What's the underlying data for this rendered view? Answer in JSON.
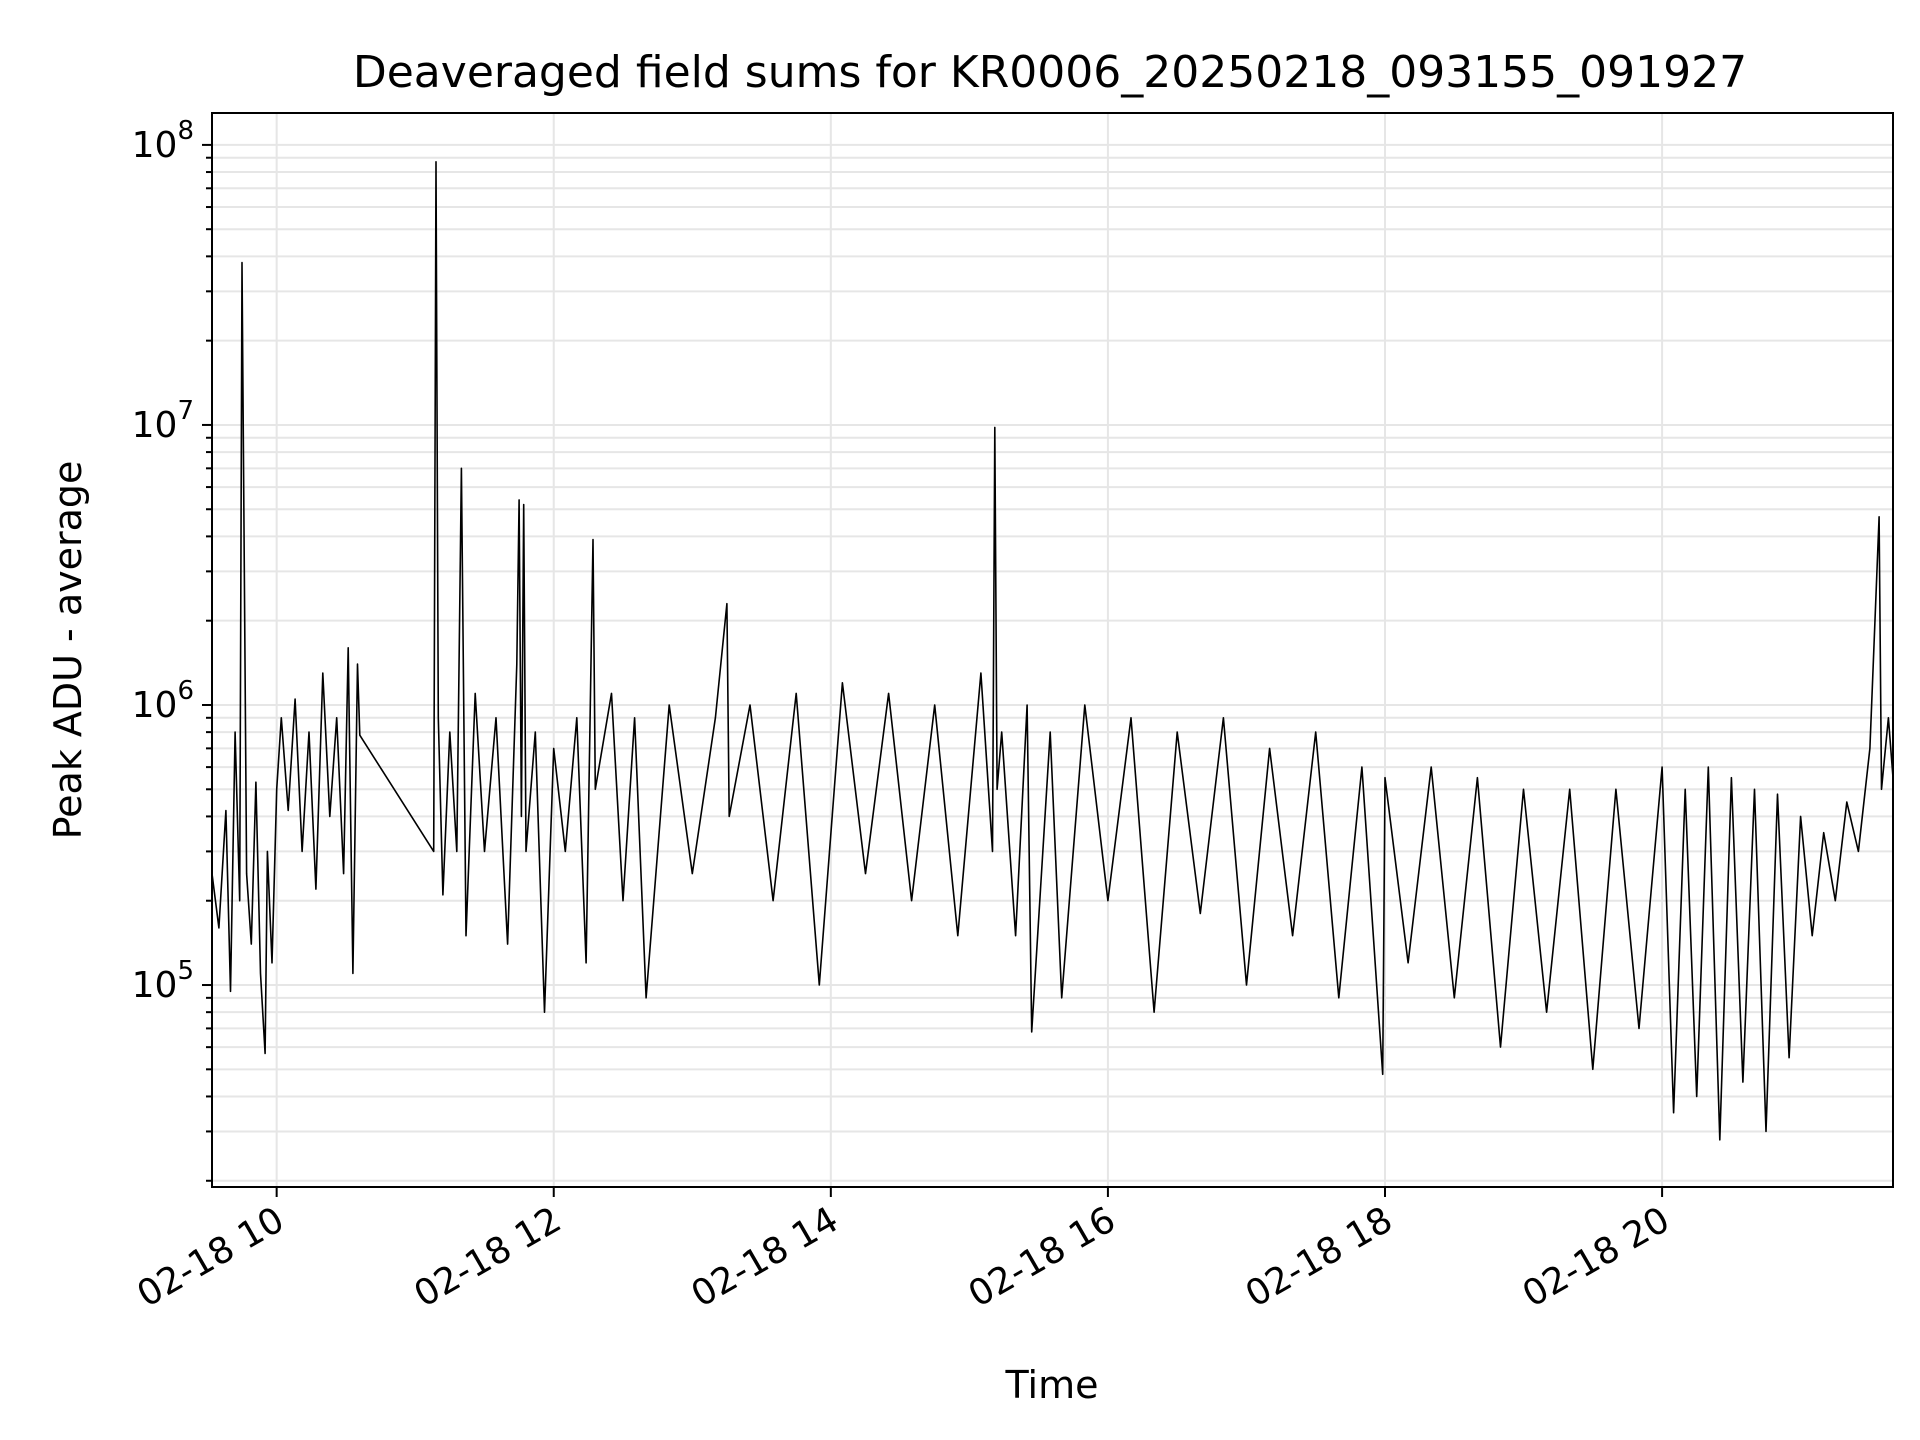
{
  "chart_data": {
    "type": "line",
    "title": "Deaveraged field sums for KR0006_20250218_093155_091927",
    "xlabel": "Time",
    "ylabel": "Peak ADU - average",
    "yscale": "log",
    "grid": true,
    "line_color": "#000000",
    "grid_color": "#e6e6e6",
    "x_range": [
      "02-18 09:32",
      "02-18 21:40"
    ],
    "ylim": [
      19000,
      130000000
    ],
    "x_ticks": [
      "02-18 10",
      "02-18 12",
      "02-18 14",
      "02-18 16",
      "02-18 18",
      "02-18 20"
    ],
    "y_ticks": [
      {
        "base": "10",
        "exp": "5",
        "value": 100000
      },
      {
        "base": "10",
        "exp": "6",
        "value": 1000000
      },
      {
        "base": "10",
        "exp": "7",
        "value": 10000000
      },
      {
        "base": "10",
        "exp": "8",
        "value": 100000000
      }
    ],
    "series": [
      {
        "data": [
          [
            "02-18 09:32",
            250000
          ],
          [
            "02-18 09:35",
            160000
          ],
          [
            "02-18 09:38",
            420000
          ],
          [
            "02-18 09:40",
            95000
          ],
          [
            "02-18 09:42",
            800000
          ],
          [
            "02-18 09:44",
            200000
          ],
          [
            "02-18 09:45",
            38000000
          ],
          [
            "02-18 09:46",
            3100000
          ],
          [
            "02-18 09:47",
            250000
          ],
          [
            "02-18 09:49",
            140000
          ],
          [
            "02-18 09:51",
            530000
          ],
          [
            "02-18 09:53",
            110000
          ],
          [
            "02-18 09:55",
            57000
          ],
          [
            "02-18 09:56",
            300000
          ],
          [
            "02-18 09:58",
            120000
          ],
          [
            "02-18 10:00",
            500000
          ],
          [
            "02-18 10:02",
            900000
          ],
          [
            "02-18 10:05",
            420000
          ],
          [
            "02-18 10:08",
            1050000
          ],
          [
            "02-18 10:11",
            300000
          ],
          [
            "02-18 10:14",
            800000
          ],
          [
            "02-18 10:17",
            220000
          ],
          [
            "02-18 10:20",
            1300000
          ],
          [
            "02-18 10:23",
            400000
          ],
          [
            "02-18 10:26",
            900000
          ],
          [
            "02-18 10:29",
            250000
          ],
          [
            "02-18 10:31",
            1600000
          ],
          [
            "02-18 10:33",
            110000
          ],
          [
            "02-18 10:35",
            1400000
          ],
          [
            "02-18 10:36",
            780000
          ],
          [
            "02-18 11:08",
            300000
          ],
          [
            "02-18 11:09",
            87000000
          ],
          [
            "02-18 11:10",
            900000
          ],
          [
            "02-18 11:12",
            210000
          ],
          [
            "02-18 11:15",
            800000
          ],
          [
            "02-18 11:18",
            300000
          ],
          [
            "02-18 11:20",
            7000000
          ],
          [
            "02-18 11:22",
            150000
          ],
          [
            "02-18 11:26",
            1100000
          ],
          [
            "02-18 11:30",
            300000
          ],
          [
            "02-18 11:35",
            900000
          ],
          [
            "02-18 11:40",
            140000
          ],
          [
            "02-18 11:44",
            1400000
          ],
          [
            "02-18 11:45",
            5400000
          ],
          [
            "02-18 11:46",
            400000
          ],
          [
            "02-18 11:47",
            5200000
          ],
          [
            "02-18 11:48",
            300000
          ],
          [
            "02-18 11:52",
            800000
          ],
          [
            "02-18 11:56",
            80000
          ],
          [
            "02-18 12:00",
            700000
          ],
          [
            "02-18 12:05",
            300000
          ],
          [
            "02-18 12:10",
            900000
          ],
          [
            "02-18 12:14",
            120000
          ],
          [
            "02-18 12:17",
            3900000
          ],
          [
            "02-18 12:18",
            500000
          ],
          [
            "02-18 12:25",
            1100000
          ],
          [
            "02-18 12:30",
            200000
          ],
          [
            "02-18 12:35",
            900000
          ],
          [
            "02-18 12:40",
            90000
          ],
          [
            "02-18 12:50",
            1000000
          ],
          [
            "02-18 13:00",
            250000
          ],
          [
            "02-18 13:10",
            900000
          ],
          [
            "02-18 13:15",
            2300000
          ],
          [
            "02-18 13:16",
            400000
          ],
          [
            "02-18 13:25",
            1000000
          ],
          [
            "02-18 13:35",
            200000
          ],
          [
            "02-18 13:45",
            1100000
          ],
          [
            "02-18 13:55",
            100000
          ],
          [
            "02-18 14:05",
            1200000
          ],
          [
            "02-18 14:15",
            250000
          ],
          [
            "02-18 14:25",
            1100000
          ],
          [
            "02-18 14:35",
            200000
          ],
          [
            "02-18 14:45",
            1000000
          ],
          [
            "02-18 14:55",
            150000
          ],
          [
            "02-18 15:05",
            1300000
          ],
          [
            "02-18 15:10",
            300000
          ],
          [
            "02-18 15:11",
            9800000
          ],
          [
            "02-18 15:12",
            500000
          ],
          [
            "02-18 15:14",
            800000
          ],
          [
            "02-18 15:20",
            150000
          ],
          [
            "02-18 15:25",
            1000000
          ],
          [
            "02-18 15:27",
            68000
          ],
          [
            "02-18 15:35",
            800000
          ],
          [
            "02-18 15:40",
            90000
          ],
          [
            "02-18 15:50",
            1000000
          ],
          [
            "02-18 16:00",
            200000
          ],
          [
            "02-18 16:10",
            900000
          ],
          [
            "02-18 16:20",
            80000
          ],
          [
            "02-18 16:30",
            800000
          ],
          [
            "02-18 16:40",
            180000
          ],
          [
            "02-18 16:50",
            900000
          ],
          [
            "02-18 17:00",
            100000
          ],
          [
            "02-18 17:10",
            700000
          ],
          [
            "02-18 17:20",
            150000
          ],
          [
            "02-18 17:30",
            800000
          ],
          [
            "02-18 17:40",
            90000
          ],
          [
            "02-18 17:50",
            600000
          ],
          [
            "02-18 17:59",
            48000
          ],
          [
            "02-18 18:00",
            550000
          ],
          [
            "02-18 18:10",
            120000
          ],
          [
            "02-18 18:20",
            600000
          ],
          [
            "02-18 18:30",
            90000
          ],
          [
            "02-18 18:40",
            550000
          ],
          [
            "02-18 18:50",
            60000
          ],
          [
            "02-18 19:00",
            500000
          ],
          [
            "02-18 19:10",
            80000
          ],
          [
            "02-18 19:20",
            500000
          ],
          [
            "02-18 19:30",
            50000
          ],
          [
            "02-18 19:40",
            500000
          ],
          [
            "02-18 19:50",
            70000
          ],
          [
            "02-18 20:00",
            600000
          ],
          [
            "02-18 20:05",
            35000
          ],
          [
            "02-18 20:10",
            500000
          ],
          [
            "02-18 20:15",
            40000
          ],
          [
            "02-18 20:20",
            600000
          ],
          [
            "02-18 20:25",
            28000
          ],
          [
            "02-18 20:30",
            550000
          ],
          [
            "02-18 20:35",
            45000
          ],
          [
            "02-18 20:40",
            500000
          ],
          [
            "02-18 20:45",
            30000
          ],
          [
            "02-18 20:50",
            480000
          ],
          [
            "02-18 20:55",
            55000
          ],
          [
            "02-18 21:00",
            400000
          ],
          [
            "02-18 21:05",
            150000
          ],
          [
            "02-18 21:10",
            350000
          ],
          [
            "02-18 21:15",
            200000
          ],
          [
            "02-18 21:20",
            450000
          ],
          [
            "02-18 21:25",
            300000
          ],
          [
            "02-18 21:30",
            700000
          ],
          [
            "02-18 21:34",
            4700000
          ],
          [
            "02-18 21:35",
            500000
          ],
          [
            "02-18 21:38",
            900000
          ],
          [
            "02-18 21:40",
            550000
          ]
        ]
      }
    ]
  }
}
